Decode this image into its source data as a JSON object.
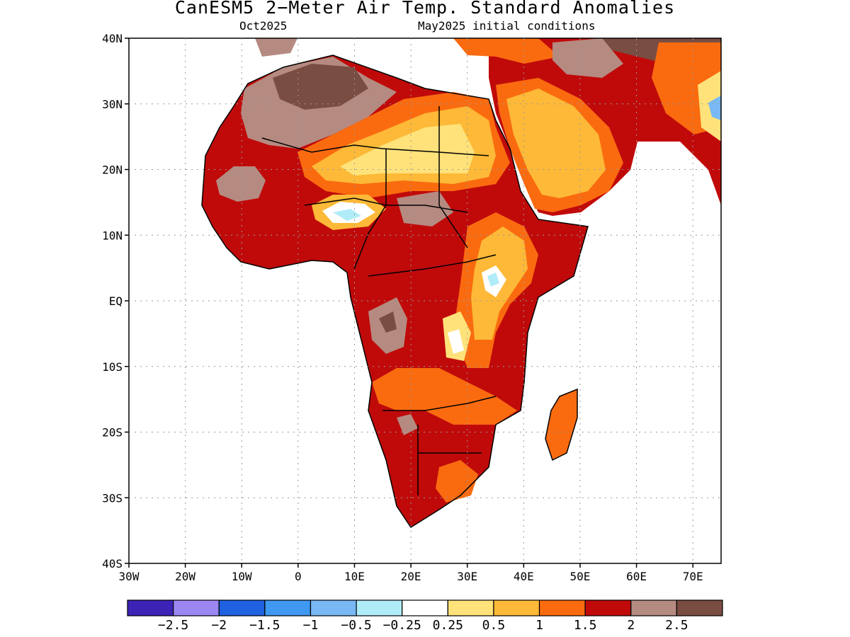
{
  "header": {
    "title": "CanESM5 2−Meter Air Temp. Standard Anomalies",
    "month": "Oct2025",
    "init": "May2025 initial conditions"
  },
  "map": {
    "lon_range": [
      -30,
      75
    ],
    "lat_range": [
      -40,
      40
    ],
    "lat_ticks": [
      "40N",
      "30N",
      "20N",
      "10N",
      "EQ",
      "10S",
      "20S",
      "30S",
      "40S"
    ],
    "lon_ticks": [
      "30W",
      "20W",
      "10W",
      "0",
      "10E",
      "20E",
      "30E",
      "40E",
      "50E",
      "60E",
      "70E"
    ],
    "grid": "dotted"
  },
  "colorbar": {
    "colors": [
      "#3c22b5",
      "#9b86f2",
      "#1f61e0",
      "#3f98f2",
      "#78b8f5",
      "#b0ecf8",
      "#ffffff",
      "#ffe27a",
      "#fdb937",
      "#fa6b10",
      "#c00a0a",
      "#b58a80",
      "#7a4d42"
    ],
    "labels": [
      "−2.5",
      "−2",
      "−1.5",
      "−1",
      "−0.5",
      "−0.25",
      "0.25",
      "0.5",
      "1",
      "1.5",
      "2",
      "2.5"
    ]
  }
}
